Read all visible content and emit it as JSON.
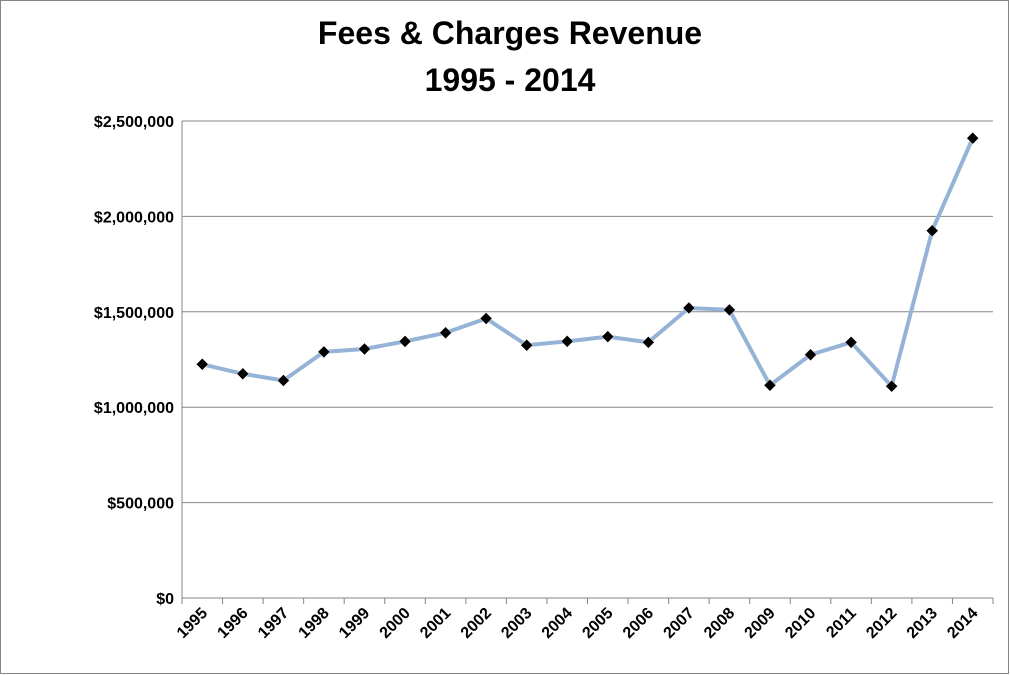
{
  "chart_data": {
    "type": "line",
    "title": "Fees & Charges Revenue",
    "subtitle": "1995 - 2014",
    "categories": [
      "1995",
      "1996",
      "1997",
      "1998",
      "1999",
      "2000",
      "2001",
      "2002",
      "2003",
      "2004",
      "2005",
      "2006",
      "2007",
      "2008",
      "2009",
      "2010",
      "2011",
      "2012",
      "2013",
      "2014"
    ],
    "values": [
      1225000,
      1175000,
      1140000,
      1290000,
      1305000,
      1345000,
      1390000,
      1465000,
      1325000,
      1345000,
      1370000,
      1340000,
      1520000,
      1510000,
      1115000,
      1275000,
      1340000,
      1110000,
      1925000,
      2410000
    ],
    "color": "#95b3d7",
    "marker_color": "#000000",
    "ylim": [
      0,
      2500000
    ],
    "yticks": [
      {
        "value": 0,
        "label": "$0"
      },
      {
        "value": 500000,
        "label": "$500,000"
      },
      {
        "value": 1000000,
        "label": "$1,000,000"
      },
      {
        "value": 1500000,
        "label": "$1,500,000"
      },
      {
        "value": 2000000,
        "label": "$2,000,000"
      },
      {
        "value": 2500000,
        "label": "$2,500,000"
      }
    ],
    "grid": true
  }
}
